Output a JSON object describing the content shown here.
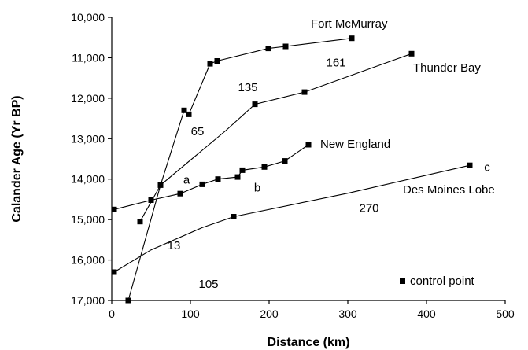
{
  "chart_data": {
    "type": "line",
    "title": "",
    "xlabel": "Distance (km)",
    "ylabel": "Calander Age (Yr BP)",
    "xlim": [
      0,
      500
    ],
    "ylim": [
      17000,
      10000
    ],
    "y_inverted": true,
    "grid": false,
    "x_ticks": [
      "0",
      "100",
      "200",
      "300",
      "400",
      "500"
    ],
    "x_tick_values": [
      0,
      100,
      200,
      300,
      400,
      500
    ],
    "y_ticks": [
      "10,000",
      "11,000",
      "12,000",
      "13,000",
      "14,000",
      "15,000",
      "16,000",
      "17,000"
    ],
    "y_tick_values": [
      10000,
      11000,
      12000,
      13000,
      14000,
      15000,
      16000,
      17000
    ],
    "series": [
      {
        "name": "Fort McMurray",
        "x": [
          21,
          62,
          92,
          98,
          125,
          134,
          199,
          221,
          305
        ],
        "y": [
          17000,
          14150,
          12300,
          12400,
          11150,
          11080,
          10770,
          10720,
          10520
        ],
        "markers": [
          true,
          true,
          true,
          true,
          true,
          true,
          true,
          true,
          true
        ]
      },
      {
        "name": "Thunder Bay",
        "x": [
          36,
          62,
          145,
          182,
          245,
          381
        ],
        "y": [
          15050,
          14150,
          12800,
          12150,
          11850,
          10900
        ],
        "markers": [
          true,
          false,
          false,
          true,
          true,
          true
        ]
      },
      {
        "name": "New England",
        "x": [
          3,
          50,
          87,
          115,
          135,
          160,
          166,
          194,
          220,
          250
        ],
        "y": [
          14750,
          14520,
          14360,
          14130,
          14000,
          13950,
          13780,
          13700,
          13550,
          13150
        ],
        "markers": [
          true,
          true,
          true,
          true,
          true,
          true,
          true,
          true,
          true,
          true
        ]
      },
      {
        "name": "Des Moines Lobe",
        "x": [
          3,
          50,
          115,
          155,
          300,
          455
        ],
        "y": [
          16300,
          15750,
          15200,
          14930,
          14350,
          13660
        ],
        "markers": [
          true,
          false,
          false,
          true,
          false,
          true
        ]
      }
    ],
    "annotations": [
      {
        "text": "65",
        "x": 109,
        "y": 12820
      },
      {
        "text": "135",
        "x": 173,
        "y": 11730
      },
      {
        "text": "161",
        "x": 285,
        "y": 11120
      },
      {
        "text": "a",
        "x": 95,
        "y": 14020
      },
      {
        "text": "b",
        "x": 185,
        "y": 14210
      },
      {
        "text": "13",
        "x": 79,
        "y": 15640
      },
      {
        "text": "105",
        "x": 123,
        "y": 16590
      },
      {
        "text": "270",
        "x": 327,
        "y": 14720
      },
      {
        "text": "c",
        "x": 477,
        "y": 13700
      }
    ],
    "legend": {
      "position": "bottom-right",
      "label": "control point"
    }
  }
}
